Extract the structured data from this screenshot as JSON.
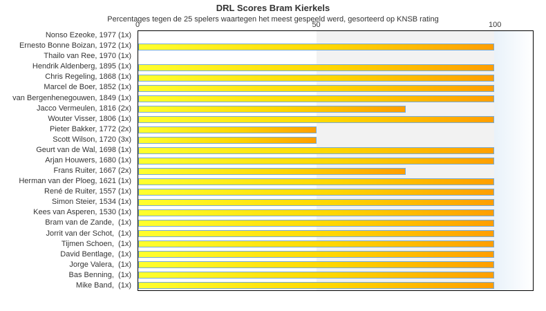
{
  "colors": {
    "text": "#333333",
    "plot_border": "#000000",
    "bar_border": "#74aad8",
    "bar_gradient_start": "#ffff2e",
    "bar_gradient_mid": "#ffd600",
    "bar_gradient_end": "#ff9e00",
    "band_gray": "#f2f2f2",
    "band_blue_start": "#e9f2fa",
    "band_blue_end": "#ffffff"
  },
  "chart_data": {
    "type": "bar",
    "orientation": "horizontal",
    "title": "DRL Scores Bram Kierkels",
    "subtitle": "Percentages tegen de 25 spelers waartegen het meest gespeeld werd, gesorteerd op KNSB rating",
    "xlabel": "",
    "ylabel": "",
    "xlim": [
      0,
      110.8
    ],
    "xticks": [
      0,
      50,
      100
    ],
    "grid": false,
    "legend": "none",
    "plot_bands": [
      {
        "from": 50,
        "to": 100,
        "style": "gray"
      },
      {
        "from": 100,
        "to": 110.8,
        "style": "blue"
      }
    ],
    "categories": [
      "Nonso Ezeoke, 1977 (1x)",
      "Ernesto Bonne Boizan, 1972 (1x)",
      "Thailo van Ree, 1970 (1x)",
      "Hendrik Aldenberg, 1895 (1x)",
      "Chris Regeling, 1868 (1x)",
      "Marcel de Boer, 1852 (1x)",
      "van Bergenhenegouwen, 1849 (1x)",
      "Jacco Vermeulen, 1816 (2x)",
      "Wouter Visser, 1806 (1x)",
      "Pieter Bakker, 1772 (2x)",
      "Scott Wilson, 1720 (3x)",
      "Geurt van de Wal, 1698 (1x)",
      "Arjan Houwers, 1680 (1x)",
      "Frans Ruiter, 1667 (2x)",
      "Herman van der Ploeg, 1621 (1x)",
      "René de Ruiter, 1557 (1x)",
      "Simon Steier, 1534 (1x)",
      "Kees van Asperen, 1530 (1x)",
      "Bram van de Zande,  (1x)",
      "Jorrit van der Schot,  (1x)",
      "Tijmen Schoen,  (1x)",
      "David Bentlage,  (1x)",
      "Jorge Valera,  (1x)",
      "Bas Benning,  (1x)",
      "Mike Band,  (1x)"
    ],
    "values": [
      0,
      100,
      0,
      100,
      100,
      100,
      100,
      75,
      100,
      50,
      50,
      100,
      100,
      75,
      100,
      100,
      100,
      100,
      100,
      100,
      100,
      100,
      100,
      100,
      100
    ]
  }
}
